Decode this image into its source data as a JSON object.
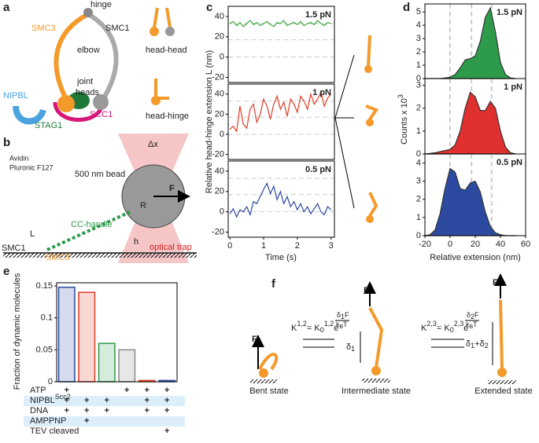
{
  "a": {
    "label": "a",
    "hinge": "hinge",
    "smc1": "SMC1",
    "smc3": "SMC3",
    "elbow": "elbow",
    "joint": "joint",
    "heads": "heads",
    "nipbl": "NIPBL",
    "stag1": "STAG1",
    "scc1": "SCC1",
    "head_head": "head-head",
    "head_hinge": "head-hinge"
  },
  "b": {
    "label": "b",
    "avidin": "Avidin",
    "pluronic": "Pluronic F127",
    "bead": "500 nm bead",
    "dx": "Δx",
    "force": "F",
    "radius": "R",
    "handle": "CC-handle",
    "length": "L",
    "smc1": "SMC1",
    "smc3": "SMC3",
    "height": "h",
    "trap": "optical trap"
  },
  "c": {
    "label": "c",
    "type": "line",
    "ylabel": "Relative head-hinge extension L (nm)",
    "xlabel": "Time (s)",
    "xlim": [
      -0.05,
      3.1
    ],
    "xticks": [
      0,
      1,
      2,
      3
    ],
    "reference_lines": [
      0,
      17,
      33
    ],
    "x": [
      0,
      0.1,
      0.2,
      0.3,
      0.4,
      0.5,
      0.6,
      0.7,
      0.8,
      0.9,
      1.0,
      1.1,
      1.2,
      1.3,
      1.4,
      1.5,
      1.6,
      1.7,
      1.8,
      1.9,
      2.0,
      2.1,
      2.2,
      2.3,
      2.4,
      2.5,
      2.6,
      2.7,
      2.8,
      2.9,
      3.0
    ],
    "panels": [
      {
        "name": "1.5 pN",
        "color": "#3aa83a",
        "ylim": [
          -25,
          50
        ],
        "yticks": [
          -20,
          0,
          20,
          40
        ],
        "values": [
          33,
          35,
          31,
          34,
          30,
          33,
          36,
          32,
          34,
          31,
          33,
          35,
          32,
          30,
          34,
          33,
          36,
          31,
          33,
          34,
          32,
          35,
          31,
          33,
          34,
          32,
          36,
          33,
          31,
          34,
          33
        ]
      },
      {
        "name": "1 pN",
        "color": "#e03c28",
        "ylim": [
          -25,
          50
        ],
        "yticks": [
          -20,
          0,
          20,
          40
        ],
        "values": [
          5,
          8,
          3,
          28,
          10,
          6,
          25,
          30,
          12,
          20,
          35,
          28,
          15,
          30,
          38,
          25,
          32,
          18,
          35,
          30,
          22,
          38,
          33,
          25,
          40,
          30,
          35,
          42,
          28,
          36,
          40
        ]
      },
      {
        "name": "0.5 pN",
        "color": "#2b4aa0",
        "ylim": [
          -25,
          50
        ],
        "yticks": [
          -20,
          0,
          20,
          40
        ],
        "values": [
          -2,
          3,
          -5,
          2,
          0,
          5,
          -3,
          10,
          8,
          15,
          22,
          28,
          18,
          25,
          12,
          20,
          8,
          15,
          5,
          10,
          2,
          8,
          0,
          5,
          -2,
          3,
          8,
          0,
          -3,
          5,
          2
        ]
      }
    ]
  },
  "d": {
    "label": "d",
    "type": "area",
    "ylabel": "Counts x 10",
    "ylabel_sup": "3",
    "xlabel": "Relative extension (nm)",
    "xlim": [
      -20,
      60
    ],
    "xticks": [
      -20,
      0,
      20,
      40,
      60
    ],
    "reference_lines": [
      0,
      17,
      33
    ],
    "x": [
      -20,
      -16,
      -12,
      -8,
      -4,
      0,
      4,
      8,
      12,
      16,
      20,
      24,
      28,
      32,
      36,
      40,
      44,
      48,
      52
    ],
    "panels": [
      {
        "name": "1.5 pN",
        "color": "#2e9b4b",
        "ylim": [
          0,
          5.6
        ],
        "yticks": [
          0,
          1,
          2,
          3,
          4,
          5
        ],
        "values": [
          0,
          0,
          0,
          0,
          0.05,
          0.1,
          0.3,
          0.8,
          1.4,
          1.5,
          1.7,
          2.8,
          4.6,
          5.3,
          3.5,
          1.2,
          0.3,
          0.05,
          0
        ]
      },
      {
        "name": "1 pN",
        "color": "#e03030",
        "ylim": [
          0,
          3.3
        ],
        "yticks": [
          0,
          1,
          2,
          3
        ],
        "values": [
          0,
          0.02,
          0.05,
          0.1,
          0.15,
          0.2,
          0.4,
          1.0,
          2.0,
          2.7,
          2.5,
          1.9,
          1.9,
          2.3,
          2.0,
          1.0,
          0.3,
          0.05,
          0
        ]
      },
      {
        "name": "0.5 pN",
        "color": "#2b4aa0",
        "ylim": [
          0,
          4.5
        ],
        "yticks": [
          0,
          1,
          2,
          3,
          4
        ],
        "values": [
          0,
          0.05,
          0.3,
          1.2,
          2.6,
          3.7,
          3.5,
          2.6,
          2.5,
          2.9,
          3.0,
          2.4,
          1.3,
          0.5,
          0.15,
          0.05,
          0,
          0,
          0
        ]
      }
    ]
  },
  "e": {
    "label": "e",
    "type": "bar",
    "ylabel": "Fraction of dynamic molecules",
    "ylim": [
      0,
      0.155
    ],
    "yticks": [
      0,
      0.05,
      0.1,
      0.15
    ],
    "values": [
      0.148,
      0.14,
      0.06,
      0.05,
      0.002,
      0.002
    ],
    "colors": [
      "#2b4aa0",
      "#e03c28",
      "#2e9b4b",
      "#888888",
      "#e03c28",
      "#2b4aa0"
    ],
    "conditions": [
      {
        "label": "ATP",
        "marks": [
          "+",
          null,
          null,
          "+",
          "+",
          "+"
        ]
      },
      {
        "label": "NIPBL",
        "superscript": "Scc2",
        "marks": [
          "+",
          "+",
          "+",
          null,
          "+",
          "+"
        ]
      },
      {
        "label": "DNA",
        "marks": [
          "+",
          "+",
          "+",
          null,
          "+",
          "+"
        ]
      },
      {
        "label": "AMPPNP",
        "marks": [
          null,
          "+",
          null,
          null,
          null,
          null
        ]
      },
      {
        "label": "TEV cleaved",
        "marks": [
          null,
          null,
          null,
          null,
          null,
          "+"
        ]
      }
    ]
  },
  "f": {
    "label": "f",
    "force": "F",
    "bent": "Bent state",
    "intermediate": "Intermediate state",
    "extended": "Extended state",
    "d1": [
      "δ",
      "1"
    ],
    "d12": [
      "δ",
      "1",
      "+δ",
      "2"
    ],
    "eq1": {
      "k": "K",
      "sup": "1,2",
      "eq": "= K",
      "sub": "0",
      "sup2": "1,2",
      "e": "e",
      "num": [
        "δ",
        "1",
        "F"
      ],
      "den": [
        "k",
        "B",
        "T"
      ]
    },
    "eq2": {
      "k": "K",
      "sup": "2,3",
      "eq": "= K",
      "sub": "0",
      "sup2": "2,3",
      "e": "e",
      "num": [
        "δ",
        "2",
        "F"
      ],
      "den": [
        "k",
        "B",
        "T"
      ]
    }
  }
}
